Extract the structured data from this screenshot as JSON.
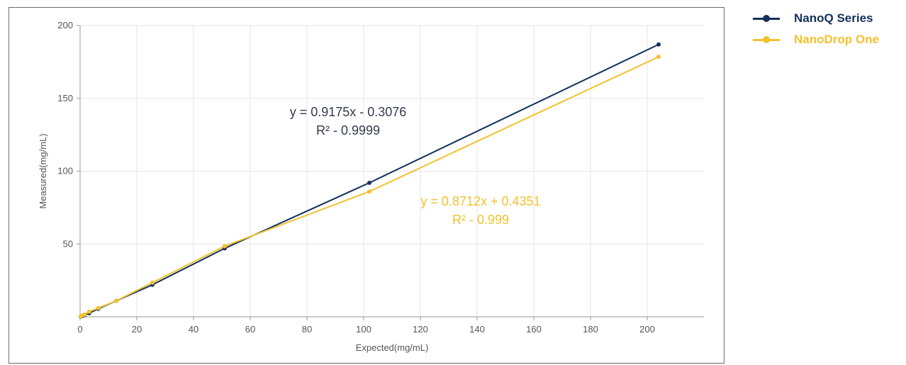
{
  "chart_data": {
    "type": "line",
    "xlabel": "Expected(mg/mL)",
    "ylabel": "Measured(mg/mL)",
    "xlim": [
      0,
      220
    ],
    "ylim": [
      0,
      200
    ],
    "x_ticks": [
      0,
      20,
      40,
      60,
      80,
      100,
      120,
      140,
      160,
      180,
      200
    ],
    "y_ticks": [
      50,
      100,
      150,
      200
    ],
    "grid": true,
    "legend_position": "right",
    "series": [
      {
        "name": "NanoQ Series",
        "color": "#13315c",
        "x": [
          0.2,
          0.8,
          1.6,
          3.2,
          6.4,
          12.8,
          25.5,
          51,
          102,
          204
        ],
        "y": [
          0.2,
          0.5,
          1.2,
          2.5,
          5.5,
          11,
          22,
          47,
          92,
          187
        ]
      },
      {
        "name": "NanoDrop One",
        "color": "#f2c12e",
        "x": [
          0.2,
          0.8,
          1.6,
          3.2,
          6.4,
          12.8,
          25.5,
          51,
          102,
          204
        ],
        "y": [
          0.3,
          0.9,
          1.6,
          3.5,
          6,
          11,
          23.5,
          48.5,
          86,
          178.5
        ]
      }
    ],
    "annotations": [
      {
        "series": 0,
        "color": "#333b4f",
        "lines": [
          "y = 0.9175x - 0.3076",
          "R² - 0.9999"
        ]
      },
      {
        "series": 1,
        "color": "#f2c12e",
        "lines": [
          "y = 0.8712x + 0.4351",
          "R² - 0.999"
        ]
      }
    ]
  }
}
